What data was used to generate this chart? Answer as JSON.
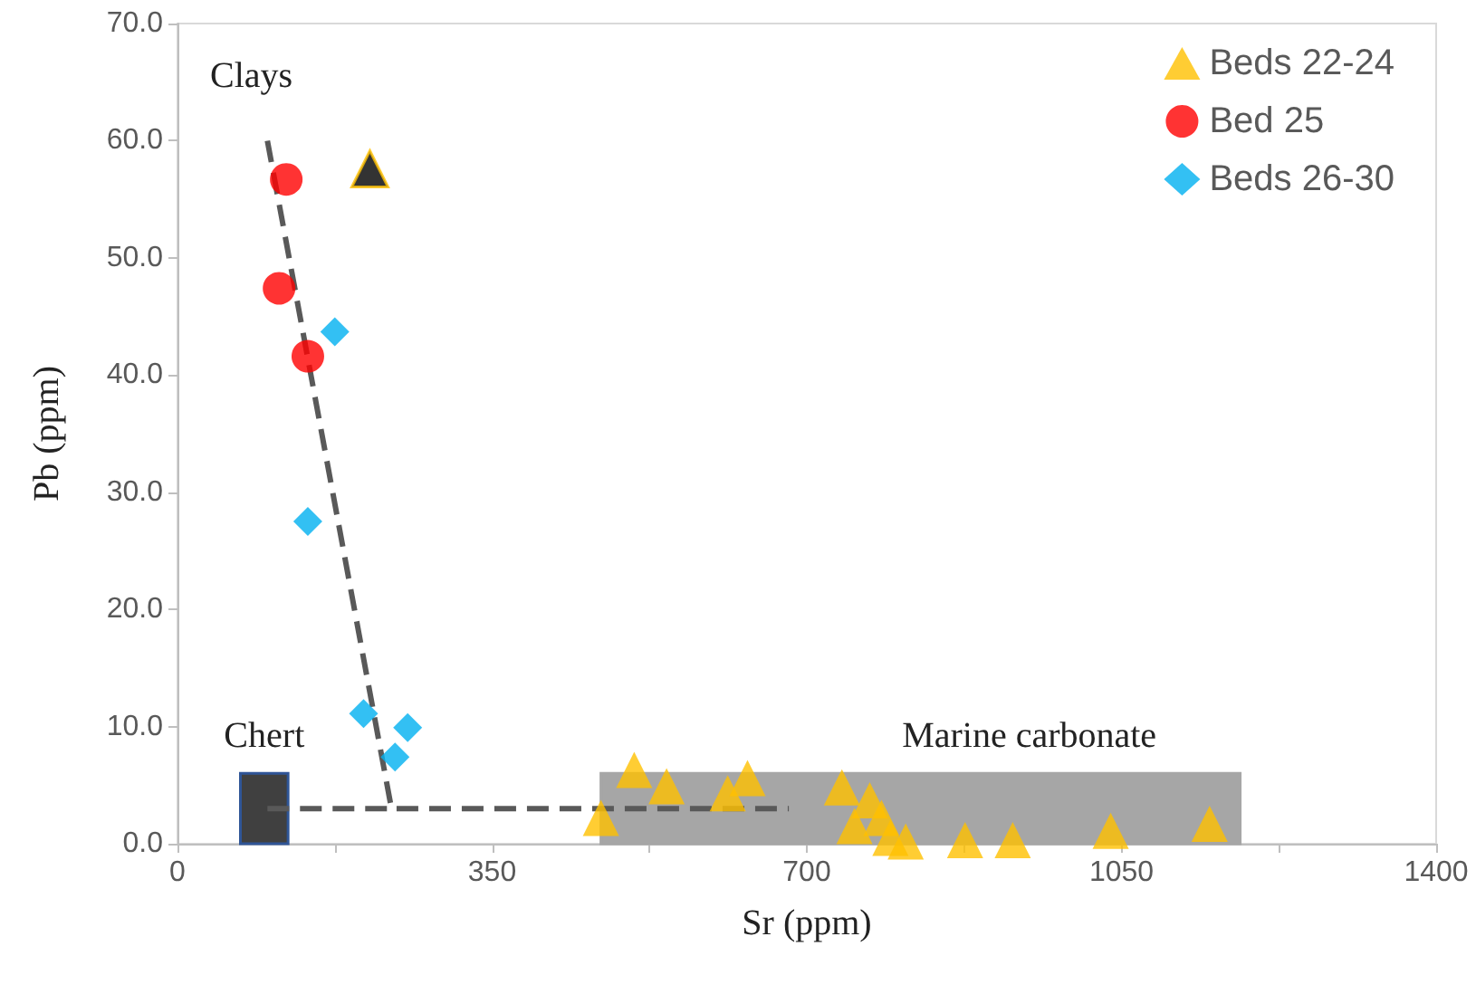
{
  "chart_data": {
    "type": "scatter",
    "xlabel": "Sr (ppm)",
    "ylabel": "Pb (ppm)",
    "xlim": [
      0,
      1400
    ],
    "ylim": [
      0,
      70
    ],
    "xticks": [
      0,
      {
        "value": 175,
        "label": null
      },
      350,
      {
        "value": 525,
        "label": null
      },
      700,
      {
        "value": 875,
        "label": null
      },
      1050,
      {
        "value": 1225,
        "label": null
      },
      1400
    ],
    "yticks": [
      {
        "value": 0,
        "label": "0.0"
      },
      {
        "value": 10,
        "label": "10.0"
      },
      {
        "value": 20,
        "label": "20.0"
      },
      {
        "value": 30,
        "label": "30.0"
      },
      {
        "value": 40,
        "label": "40.0"
      },
      {
        "value": 50,
        "label": "50.0"
      },
      {
        "value": 60,
        "label": "60.0"
      },
      {
        "value": 70,
        "label": "70.0"
      }
    ],
    "legend": "top right",
    "annotations": [
      "Clays"
    ],
    "bands": [
      {
        "axis": "x",
        "from": 70,
        "to": 123,
        "label": "Chert",
        "color": "#404040"
      },
      {
        "axis": "x",
        "from": 471,
        "to": 1182,
        "label": "Marine carbonate",
        "color": "#a6a6a6"
      }
    ],
    "series": [
      {
        "type": "line",
        "color": "#595959",
        "line_style": "dashed",
        "marker": "none",
        "x": [
          100,
          238,
          680
        ],
        "values": [
          60,
          3,
          3
        ]
      },
      {
        "type": "line",
        "color": "#595959",
        "line_style": "dashed",
        "marker": "none",
        "x": [
          100,
          238
        ],
        "values": [
          3,
          3
        ]
      },
      {
        "name": "Beds 22-24",
        "color": "#ffc000",
        "marker": "triangle",
        "x": [
          508,
          471,
          544,
          612,
          634,
          739,
          770,
          753,
          783,
          793,
          810,
          876,
          929,
          1038,
          1148
        ],
        "values": [
          6.3,
          2.2,
          4.9,
          4.3,
          5.6,
          4.8,
          3.7,
          1.5,
          2.2,
          0.5,
          0.2,
          0.3,
          0.3,
          1.1,
          1.7
        ]
      },
      {
        "name": "Bed 25",
        "color": "#ff0000",
        "marker": "circle",
        "x": [
          121,
          113,
          145
        ],
        "values": [
          56.7,
          47.4,
          41.6
        ]
      },
      {
        "name": "Beds 26-30",
        "color": "#00b0f0",
        "marker": "diamond",
        "x": [
          175,
          145,
          207,
          256,
          242
        ],
        "values": [
          43.7,
          27.5,
          11.1,
          9.9,
          7.4
        ]
      },
      {
        "color": "#000000",
        "marker": "triangle",
        "x": [
          214
        ],
        "values": [
          57.6
        ]
      }
    ]
  }
}
